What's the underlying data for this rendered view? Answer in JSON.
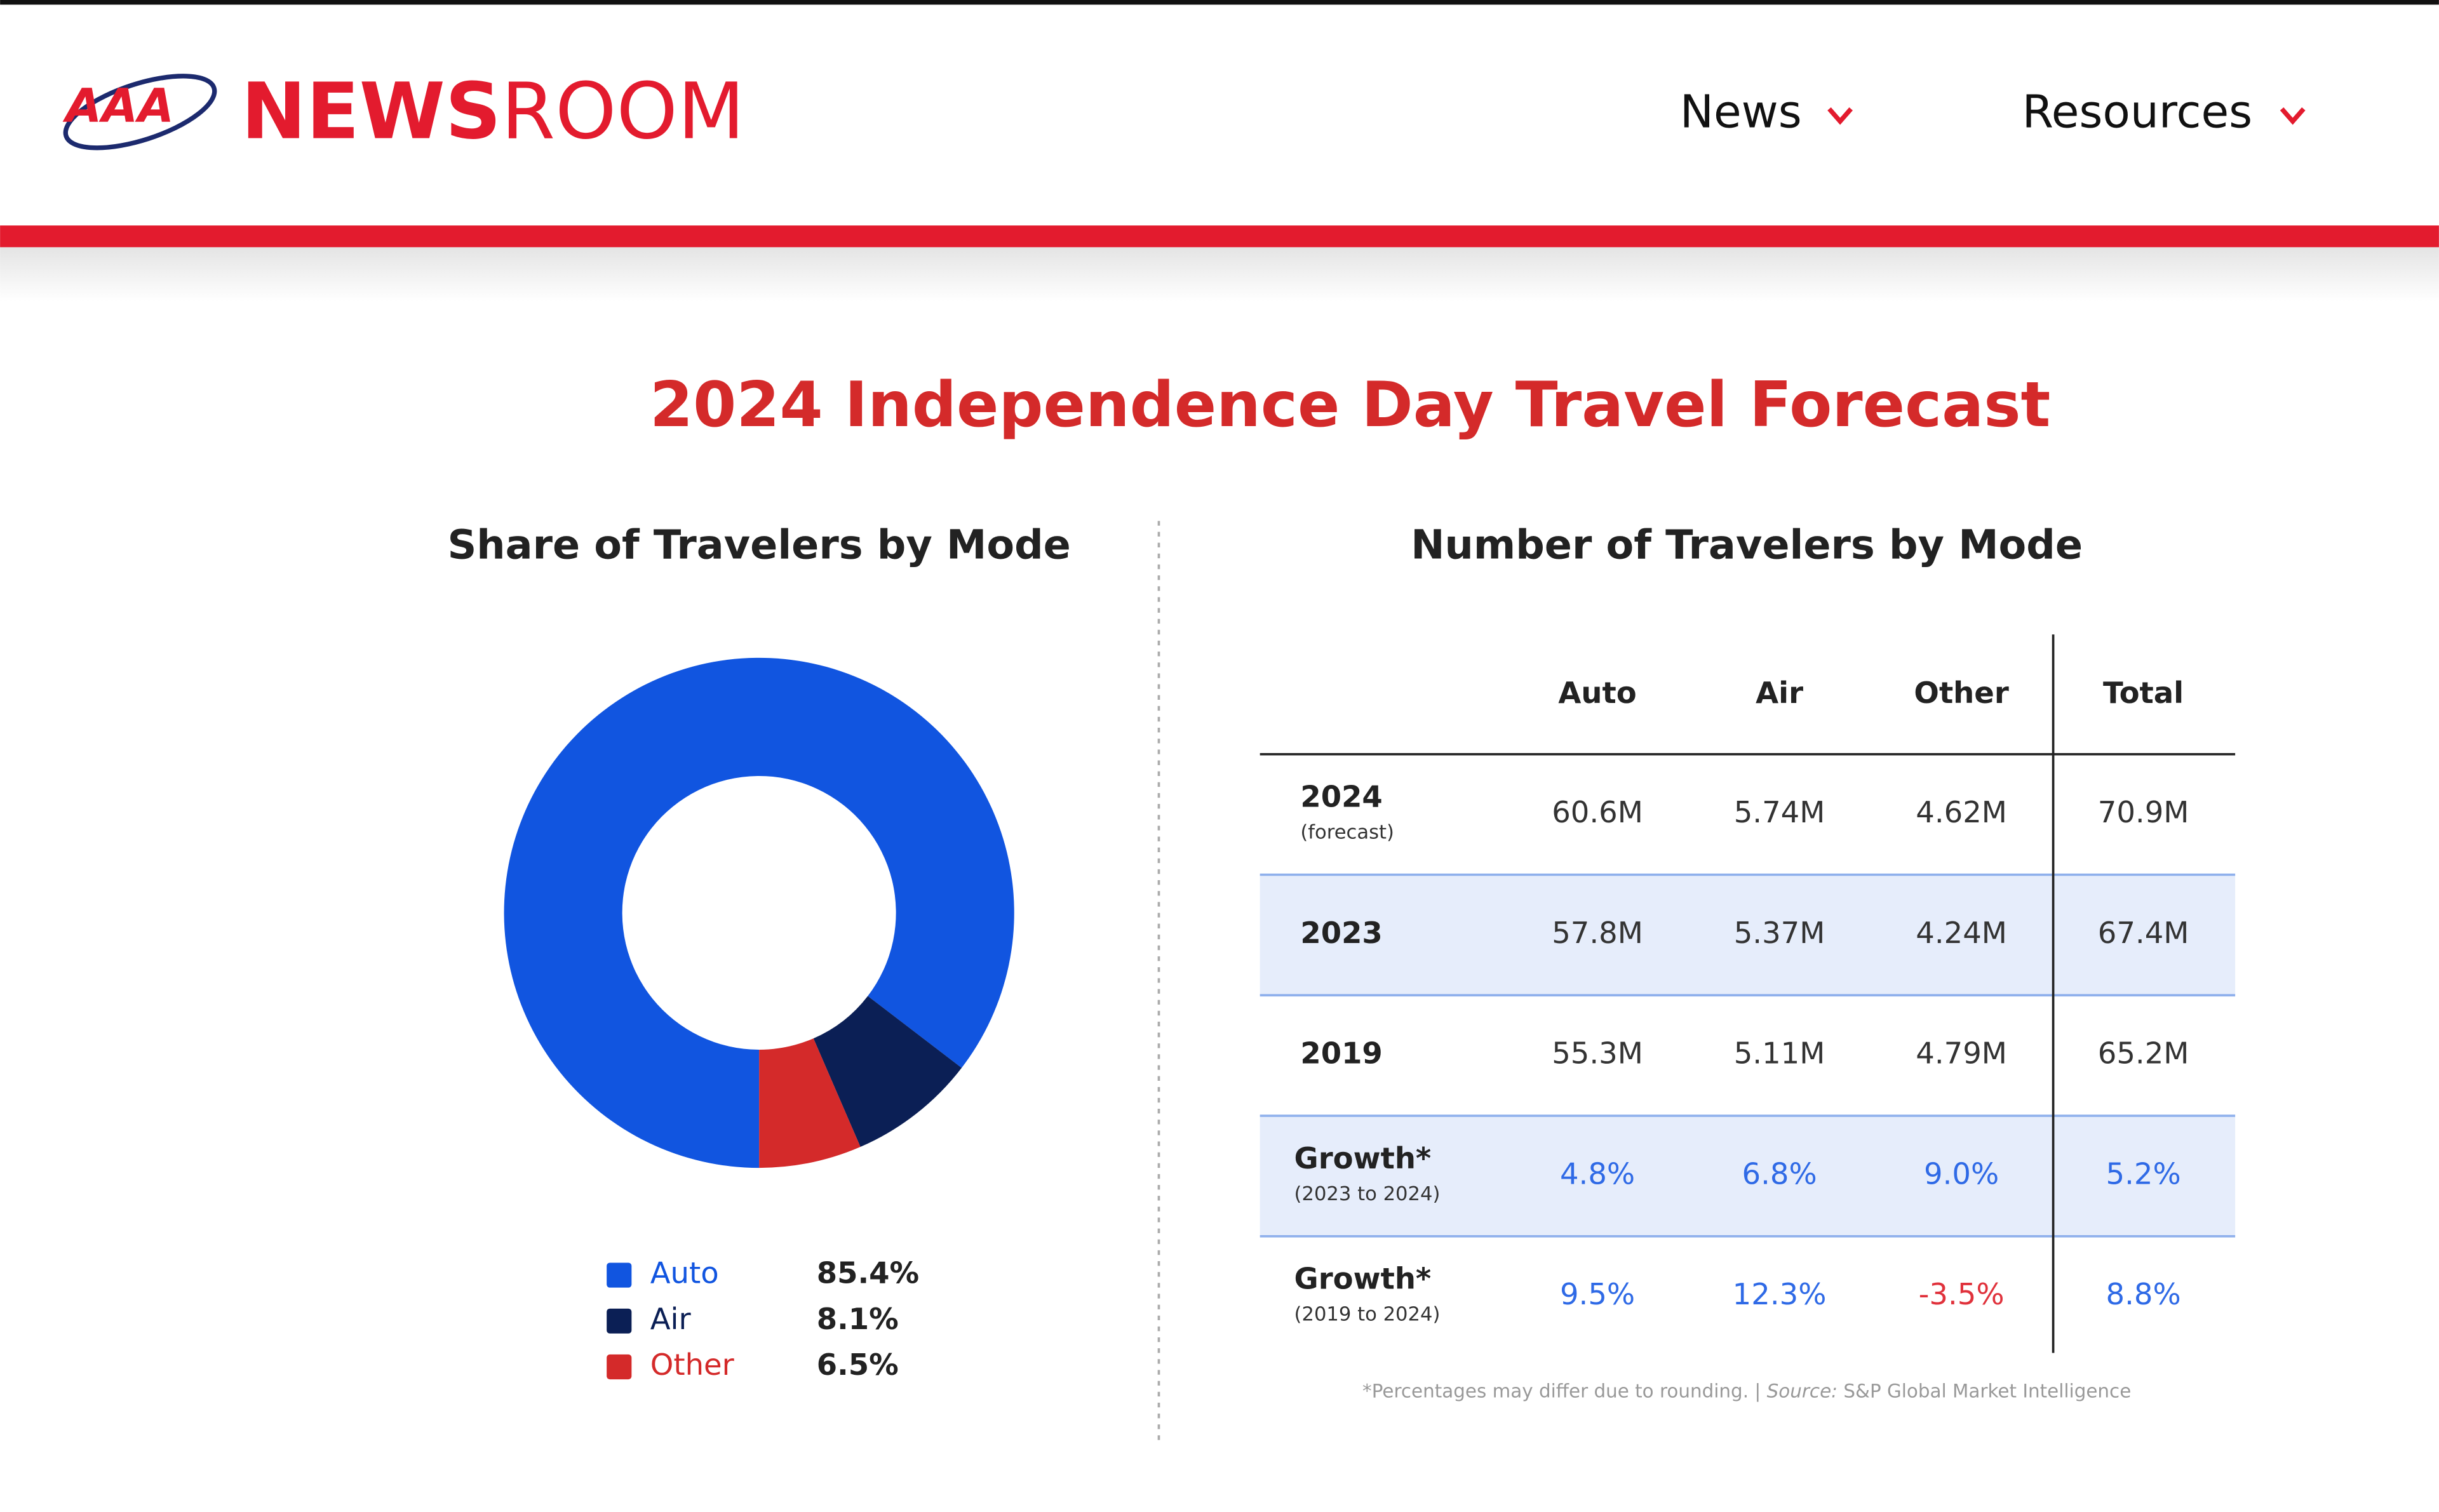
{
  "header": {
    "logo": "AAA",
    "brand_bold": "NEWS",
    "brand_light": "ROOM",
    "nav": [
      "News",
      "Resources"
    ]
  },
  "title": "2024 Independence Day Travel Forecast",
  "chart_data": {
    "type": "pie",
    "donut": true,
    "title": "Share of Travelers by Mode",
    "categories": [
      "Auto",
      "Air",
      "Other"
    ],
    "values": [
      85.4,
      8.1,
      6.5
    ],
    "value_labels": [
      "85.4%",
      "8.1%",
      "6.5%"
    ],
    "colors": [
      "#1155e0",
      "#0b1f55",
      "#d42a2a"
    ]
  },
  "table": {
    "title": "Number of Travelers by Mode",
    "columns": [
      "Auto",
      "Air",
      "Other",
      "Total"
    ],
    "rows": [
      {
        "label": "2024",
        "sublabel": "(forecast)",
        "cells": [
          "60.6M",
          "5.74M",
          "4.62M",
          "70.9M"
        ]
      },
      {
        "label": "2023",
        "cells": [
          "57.8M",
          "5.37M",
          "4.24M",
          "67.4M"
        ]
      },
      {
        "label": "2019",
        "cells": [
          "55.3M",
          "5.11M",
          "4.79M",
          "65.2M"
        ]
      },
      {
        "label": "Growth*",
        "sublabel": "(2023 to 2024)",
        "cells": [
          "4.8%",
          "6.8%",
          "9.0%",
          "5.2%"
        ]
      },
      {
        "label": "Growth*",
        "sublabel": "(2019 to 2024)",
        "cells": [
          "9.5%",
          "12.3%",
          "-3.5%",
          "8.8%"
        ]
      }
    ],
    "footnote": {
      "text": "*Percentages may differ due to rounding. | ",
      "source_label": "Source:",
      "source": " S&P Global Market Intelligence"
    }
  }
}
